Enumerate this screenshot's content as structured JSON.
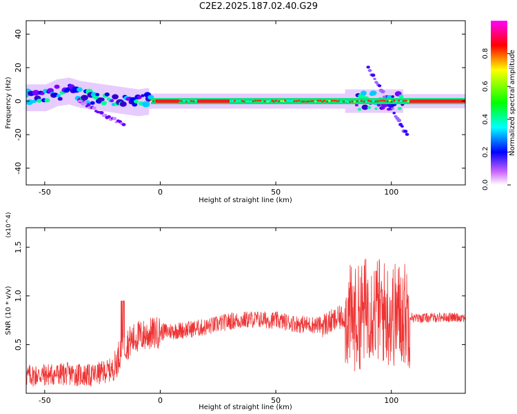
{
  "title": "C2E2.2025.187.02.40.G29",
  "chart_data": [
    {
      "type": "heatmap",
      "xlabel": "Height of straight line (km)",
      "ylabel": "Frequency (Hz)",
      "xlim": [
        -58,
        132
      ],
      "ylim": [
        -50,
        48
      ],
      "xticks": [
        -50,
        0,
        50,
        100
      ],
      "yticks": [
        -40,
        -20,
        0,
        20,
        40
      ],
      "colorbar": {
        "label": "Normalized spectral amplitude",
        "range": [
          0.0,
          1.0
        ],
        "ticks": [
          0.0,
          0.2,
          0.4,
          0.6,
          0.8
        ],
        "tick_labels": [
          "0.0",
          "0.2",
          "0.4",
          "0.6",
          "0.8"
        ],
        "colormap": [
          "#ff00ff",
          "#ff0000",
          "#ffff00",
          "#00ff00",
          "#00ffff",
          "#0000ff",
          "#ff00ff",
          "#ffffff"
        ]
      },
      "ridge": [
        {
          "x": -58,
          "f": 2
        },
        {
          "x": -50,
          "f": 2
        },
        {
          "x": -45,
          "f": 5
        },
        {
          "x": -40,
          "f": 6
        },
        {
          "x": -35,
          "f": 4
        },
        {
          "x": -30,
          "f": 3
        },
        {
          "x": -25,
          "f": 2
        },
        {
          "x": -20,
          "f": 1
        },
        {
          "x": -15,
          "f": 0
        },
        {
          "x": -10,
          "f": -1
        },
        {
          "x": -5,
          "f": 0
        },
        {
          "x": 0,
          "f": 0
        },
        {
          "x": 50,
          "f": 0
        },
        {
          "x": 100,
          "f": 0
        },
        {
          "x": 132,
          "f": 0
        }
      ]
    },
    {
      "type": "line",
      "xlabel": "Height of straight line (km)",
      "ylabel": "SNR (10 * v/v)",
      "y_multiplier": "(x10^4)",
      "xlim": [
        -58,
        132
      ],
      "ylim": [
        0,
        17000
      ],
      "xticks": [
        -50,
        0,
        50,
        100
      ],
      "yticks": [
        5000,
        10000,
        15000
      ],
      "ytick_labels": [
        "0.5",
        "1.0",
        "1.5"
      ],
      "line_color": "#ee3333",
      "series": [
        {
          "x": [
            -58,
            -50,
            -40,
            -30,
            -20,
            -17,
            -15,
            -10,
            0,
            10,
            20,
            30,
            40,
            50,
            60,
            70,
            75,
            80,
            85,
            90,
            95,
            100,
            105,
            110,
            120,
            132
          ],
          "y": [
            1800,
            1900,
            2000,
            1800,
            2500,
            4500,
            5000,
            5800,
            6300,
            6500,
            6800,
            7400,
            7600,
            7500,
            7100,
            7000,
            7400,
            8000,
            7500,
            9000,
            8500,
            8000,
            8300,
            7700,
            7800,
            7800
          ]
        }
      ]
    }
  ]
}
